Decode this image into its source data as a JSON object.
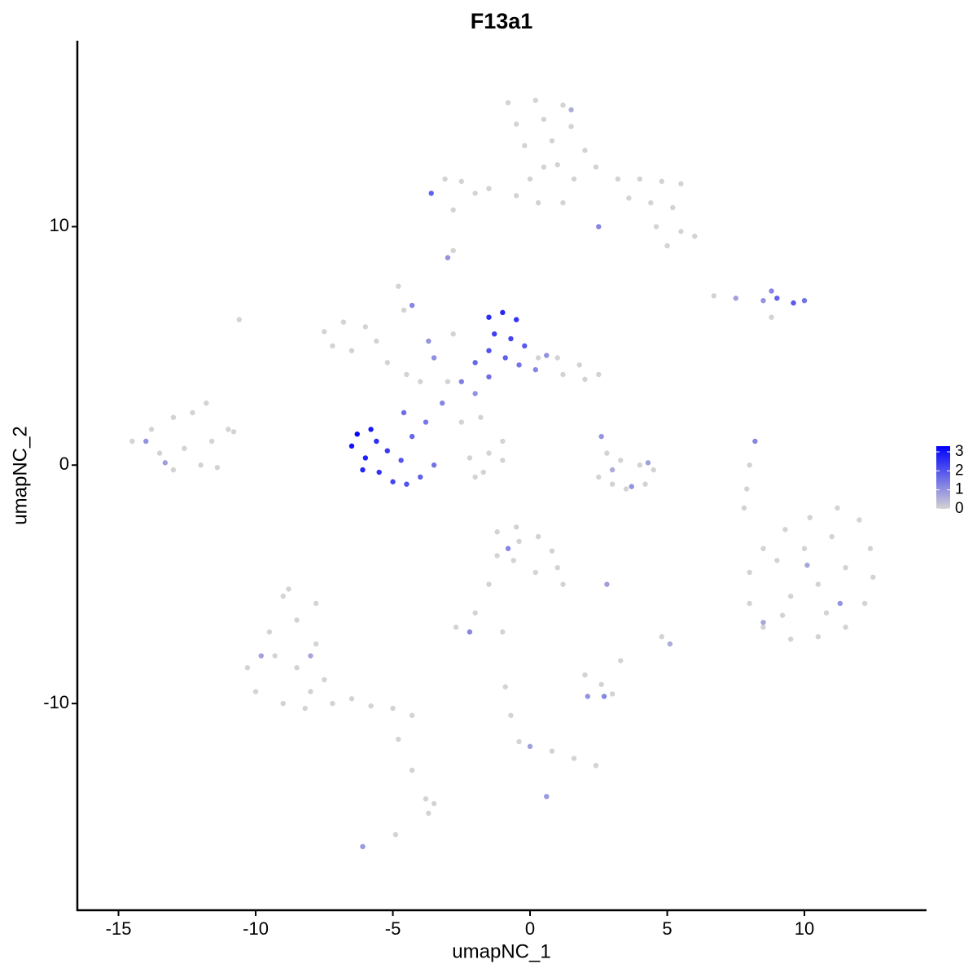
{
  "chart_data": {
    "type": "scatter",
    "title": "F13a1",
    "x_label": "umapNC_1",
    "y_label": "umapNC_2",
    "xlim": [
      -16.5,
      14.45
    ],
    "ylim": [
      -18.67,
      17.8
    ],
    "xticks": [
      -15,
      -10,
      -5,
      0,
      5,
      10
    ],
    "yticks": [
      -10,
      0,
      10
    ],
    "colors": [
      "#d3d3d3",
      "#0000ff"
    ],
    "clim": [
      0,
      3.3
    ],
    "cticks": [
      0,
      1,
      2,
      3
    ],
    "x": [
      -0.8,
      0.2,
      1.2,
      -0.5,
      0.5,
      1.5,
      -0.2,
      0.8,
      2.0,
      1.0,
      1.6,
      2.4,
      3.2,
      4.0,
      4.8,
      5.5,
      3.6,
      4.4,
      5.2,
      4.6,
      5.5,
      6.0,
      5.0,
      0.3,
      -0.5,
      -1.5,
      -2.5,
      -3.1,
      -2.0,
      -3.6,
      1.5,
      2.5,
      -2.8,
      0.0,
      1.2,
      0.5,
      -14.5,
      -13.8,
      -13.0,
      -12.3,
      -11.8,
      -13.5,
      -12.6,
      -11.6,
      -11.0,
      -12.0,
      -13.0,
      -11.4,
      -10.8,
      -14.0,
      -13.3,
      -10.3,
      -10.0,
      -9.5,
      -9.0,
      -8.5,
      -9.3,
      -8.5,
      -7.8,
      -8.0,
      -9.0,
      -8.2,
      -7.5,
      -7.2,
      -6.5,
      -5.8,
      -5.0,
      -4.3,
      -8.8,
      -7.8,
      -9.8,
      -8.0,
      -4.8,
      -4.3,
      -3.8,
      -3.7,
      -3.5,
      -6.1,
      -4.9,
      8.0,
      8.5,
      9.3,
      10.2,
      11.2,
      12.0,
      12.4,
      12.5,
      12.2,
      11.5,
      10.5,
      9.5,
      8.5,
      8.0,
      9.0,
      10.0,
      11.0,
      11.5,
      10.5,
      9.5,
      10.8,
      9.2,
      11.3,
      10.1,
      8.5,
      8.2,
      8.0,
      7.9,
      7.8,
      -7.5,
      -6.8,
      -6.0,
      -5.6,
      -7.2,
      -6.5,
      -5.2,
      -4.5,
      -4.0,
      -4.8,
      -4.6,
      -3.0,
      -1.8,
      -1.0,
      -1.5,
      -2.5,
      -2.2,
      -2.0,
      -1.7,
      0.3,
      1.0,
      1.8,
      2.5,
      2.0,
      1.2,
      -10.6,
      -1.0,
      -2.8,
      -6.5,
      -6.3,
      -5.8,
      -6.0,
      -5.5,
      -5.0,
      -4.5,
      -4.0,
      -3.5,
      -5.2,
      -4.7,
      -6.1,
      -5.6,
      -4.3,
      -3.8,
      -4.6,
      -3.2,
      -2.5,
      -2.0,
      -1.5,
      -3.5,
      -1.5,
      -1.0,
      -0.5,
      -1.3,
      -0.7,
      -0.2,
      -1.5,
      -0.9,
      -0.4,
      0.2,
      -2.0,
      0.6,
      -4.3,
      -3.7,
      9.0,
      9.6,
      10.0,
      8.5,
      7.5,
      6.7,
      8.8,
      8.8,
      2.5,
      3.0,
      3.5,
      4.2,
      4.5,
      2.8,
      3.3,
      4.0,
      2.6,
      3.7,
      3.0,
      4.3,
      -3.0,
      -2.8,
      -1.2,
      -0.5,
      0.3,
      0.8,
      1.0,
      1.2,
      0.2,
      -0.6,
      -1.2,
      -0.4,
      -0.8,
      -1.5,
      -2.0,
      -2.7,
      -2.2,
      -1.0,
      2.8,
      4.8,
      5.1,
      2.0,
      2.6,
      3.0,
      2.1,
      2.7,
      3.3,
      -0.9,
      -0.7,
      -0.4,
      0.0,
      0.8,
      1.6,
      2.4,
      0.6
    ],
    "y": [
      15.2,
      15.3,
      15.1,
      14.3,
      14.5,
      14.2,
      13.4,
      13.6,
      13.2,
      12.6,
      12.0,
      12.5,
      12.0,
      12.0,
      11.9,
      11.8,
      11.2,
      11.0,
      10.8,
      10.0,
      9.8,
      9.6,
      9.2,
      11.0,
      11.3,
      11.6,
      11.9,
      12.0,
      11.4,
      11.4,
      14.9,
      10.0,
      10.7,
      12.0,
      11.0,
      12.5,
      1.0,
      1.5,
      2.0,
      2.2,
      2.6,
      0.5,
      0.7,
      1.0,
      1.5,
      0.0,
      -0.2,
      -0.1,
      1.4,
      1.0,
      0.1,
      -8.5,
      -9.5,
      -7.0,
      -5.5,
      -6.5,
      -8.0,
      -8.5,
      -7.5,
      -9.5,
      -10.0,
      -10.2,
      -9.0,
      -10.0,
      -9.8,
      -10.1,
      -10.2,
      -10.5,
      -5.2,
      -5.8,
      -8.0,
      -8.0,
      -11.5,
      -12.8,
      -14.0,
      -14.6,
      -14.2,
      -16.0,
      -15.5,
      -4.5,
      -3.5,
      -2.7,
      -2.2,
      -1.8,
      -2.3,
      -3.5,
      -4.7,
      -5.8,
      -6.8,
      -7.2,
      -7.3,
      -6.8,
      -5.8,
      -4.0,
      -3.5,
      -3.0,
      -4.3,
      -5.0,
      -5.5,
      -6.2,
      -6.3,
      -5.8,
      -4.2,
      -6.6,
      1.0,
      0.0,
      -1.0,
      -1.8,
      5.6,
      6.0,
      5.8,
      5.2,
      5.0,
      4.8,
      4.3,
      3.8,
      3.5,
      7.5,
      6.5,
      3.5,
      2.0,
      1.0,
      0.5,
      1.8,
      0.3,
      -0.5,
      -0.3,
      4.5,
      4.5,
      4.2,
      3.8,
      3.6,
      3.8,
      6.1,
      0.2,
      5.5,
      0.8,
      1.3,
      1.5,
      0.3,
      -0.3,
      -0.7,
      -0.8,
      -0.5,
      0.0,
      0.6,
      0.2,
      -0.2,
      1.0,
      1.2,
      1.8,
      2.2,
      2.6,
      3.5,
      3.0,
      3.7,
      4.5,
      6.2,
      6.4,
      6.1,
      5.5,
      5.3,
      5.0,
      4.8,
      4.5,
      4.2,
      4.0,
      4.3,
      4.6,
      6.7,
      5.2,
      7.0,
      6.8,
      6.9,
      6.9,
      7.0,
      7.1,
      7.3,
      6.2,
      -0.5,
      -0.8,
      -1.0,
      -0.8,
      -0.2,
      0.5,
      0.2,
      0.0,
      1.2,
      -0.9,
      -0.2,
      0.1,
      8.7,
      9.0,
      -2.8,
      -2.6,
      -3.0,
      -3.6,
      -4.3,
      -5.0,
      -4.5,
      -4.0,
      -3.8,
      -3.2,
      -3.5,
      -5.0,
      -6.2,
      -6.8,
      -7.0,
      -7.0,
      -5.0,
      -7.2,
      -7.5,
      -8.8,
      -9.2,
      -9.6,
      -9.7,
      -9.7,
      -8.2,
      -9.3,
      -10.5,
      -11.6,
      -11.8,
      -12.0,
      -12.3,
      -12.6,
      -13.9
    ],
    "values": [
      0,
      0,
      0,
      0,
      0,
      0,
      0,
      0,
      0,
      0,
      0,
      0,
      0,
      0,
      0,
      0,
      0,
      0,
      0,
      0,
      0,
      0,
      0,
      0,
      0,
      0,
      0,
      0,
      0,
      1.8,
      0.6,
      1.2,
      0,
      0,
      0,
      0,
      0,
      0,
      0,
      0,
      0,
      0,
      0,
      0,
      0,
      0,
      0,
      0,
      0,
      1.0,
      0.8,
      0,
      0,
      0,
      0,
      0,
      0,
      0,
      0,
      0,
      0,
      0,
      0,
      0,
      0,
      0,
      0,
      0,
      0,
      0,
      0.8,
      0.7,
      0,
      0,
      0,
      0,
      0,
      0.9,
      0,
      0,
      0,
      0,
      0,
      0,
      0,
      0,
      0,
      0,
      0,
      0,
      0,
      0,
      0,
      0,
      0,
      0,
      0,
      0,
      0,
      0,
      0,
      1.0,
      0.7,
      0.7,
      1.2,
      0,
      0,
      0,
      0,
      0,
      0,
      0,
      0,
      0,
      0,
      0,
      0,
      0,
      0,
      0,
      0,
      0,
      0,
      0,
      0,
      0,
      0,
      0,
      0,
      0,
      0,
      0,
      0,
      0,
      0,
      0,
      3.0,
      3.2,
      2.9,
      2.8,
      2.5,
      2.2,
      2.0,
      1.8,
      1.5,
      2.4,
      2.0,
      2.7,
      2.6,
      1.7,
      1.4,
      1.6,
      1.2,
      1.3,
      1.0,
      1.6,
      1.1,
      2.6,
      2.7,
      2.5,
      2.3,
      2.2,
      1.9,
      2.0,
      1.8,
      1.5,
      1.2,
      1.7,
      1.0,
      1.2,
      1.0,
      1.8,
      1.9,
      1.5,
      1.0,
      0.8,
      0,
      1.2,
      0,
      0,
      0,
      0,
      0,
      0,
      0,
      0,
      0,
      1.0,
      1.0,
      0.6,
      0.8,
      1.0,
      0,
      0,
      0,
      0,
      0,
      0,
      0,
      0,
      0,
      0,
      0,
      1.2,
      0,
      0,
      0,
      1.2,
      0,
      0.8,
      0,
      0.6,
      0,
      0,
      0,
      1.0,
      1.2,
      0,
      0,
      0,
      0,
      0.8,
      0,
      0,
      0,
      0.9
    ]
  }
}
